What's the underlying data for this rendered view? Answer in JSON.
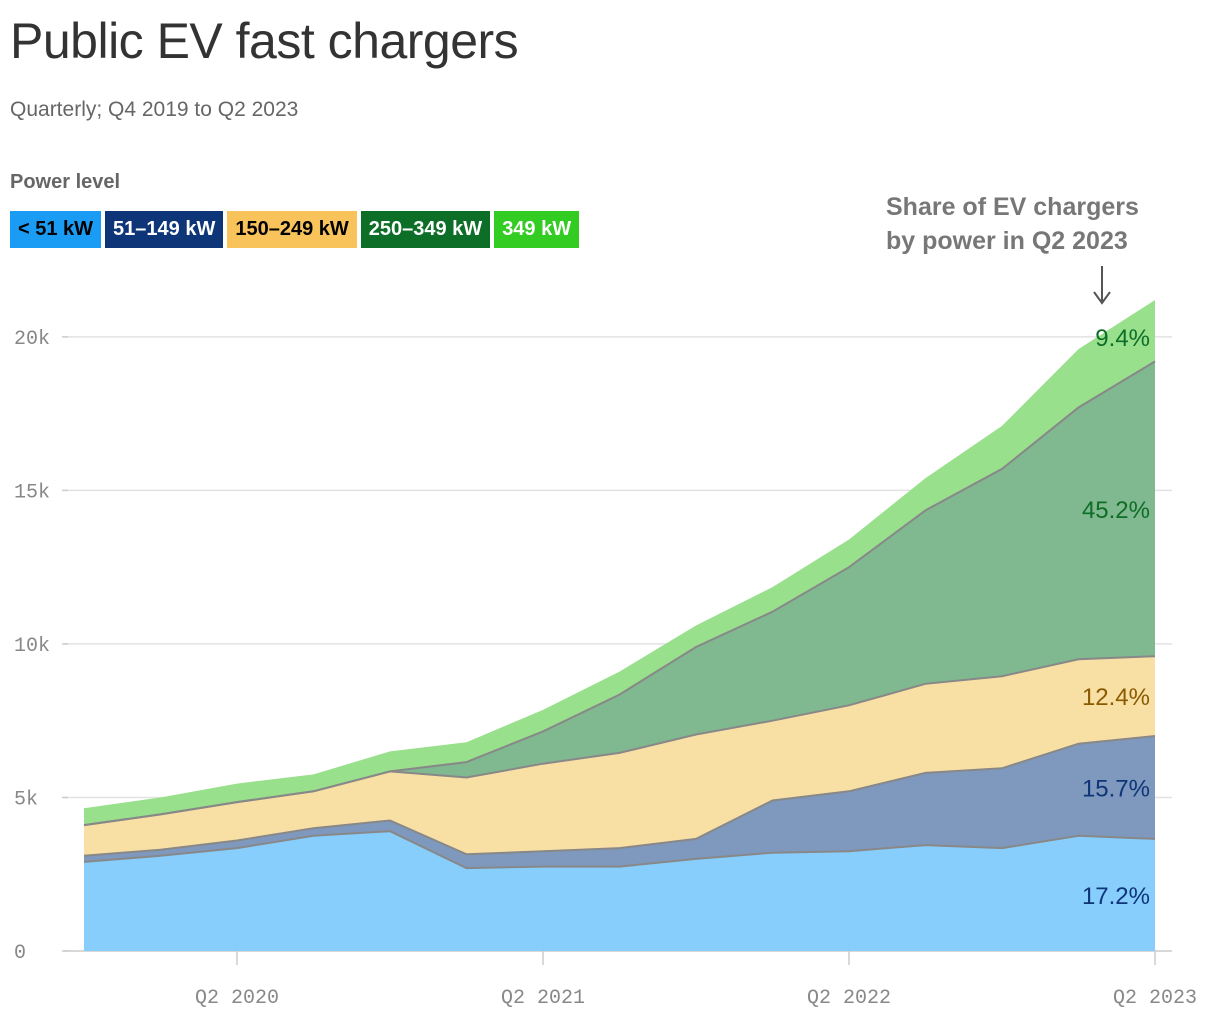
{
  "header": {
    "title": "Public EV fast chargers",
    "subtitle": "Quarterly; Q4 2019 to Q2 2023"
  },
  "legend": {
    "title": "Power level",
    "items": [
      {
        "label": "< 51 kW",
        "color": "#1a9cf5",
        "text_color": "#000000"
      },
      {
        "label": "51–149 kW",
        "color": "#0e3578",
        "text_color": "#ffffff"
      },
      {
        "label": "150–249 kW",
        "color": "#f7c35a",
        "text_color": "#000000"
      },
      {
        "label": "250–349 kW",
        "color": "#0d6e27",
        "text_color": "#ffffff"
      },
      {
        "label": "349 kW",
        "color": "#33cc22",
        "text_color": "#ffffff"
      }
    ]
  },
  "note": {
    "line1": "Share of EV chargers",
    "line2": "by power in Q2 2023",
    "arrow": "↓"
  },
  "chart_data": {
    "type": "area",
    "stacked": true,
    "x": [
      "Q4 2019",
      "Q1 2020",
      "Q2 2020",
      "Q3 2020",
      "Q4 2020",
      "Q1 2021",
      "Q2 2021",
      "Q3 2021",
      "Q4 2021",
      "Q1 2022",
      "Q2 2022",
      "Q3 2022",
      "Q4 2022",
      "Q1 2023",
      "Q2 2023"
    ],
    "x_tick_labels": [
      "Q2 2020",
      "Q2 2021",
      "Q2 2022",
      "Q2 2023"
    ],
    "y_ticks": [
      0,
      5000,
      10000,
      15000,
      20000
    ],
    "y_tick_labels": [
      "0",
      "5k",
      "10k",
      "15k",
      "20k"
    ],
    "ylim": [
      0,
      21200
    ],
    "grid": true,
    "series": [
      {
        "name": "< 51 kW",
        "color": "#87cefd",
        "values": [
          2900,
          3100,
          3350,
          3750,
          3900,
          2700,
          2750,
          2750,
          3000,
          3200,
          3250,
          3450,
          3350,
          3750,
          3650
        ]
      },
      {
        "name": "51–149 kW",
        "color": "#7f98bd",
        "values": [
          200,
          200,
          250,
          250,
          350,
          450,
          500,
          600,
          650,
          1700,
          1950,
          2350,
          2600,
          3000,
          3350
        ]
      },
      {
        "name": "150–249 kW",
        "color": "#f8e0a5",
        "values": [
          1000,
          1150,
          1250,
          1200,
          1600,
          2500,
          2850,
          3100,
          3400,
          2600,
          2800,
          2900,
          3000,
          2750,
          2600
        ]
      },
      {
        "name": "250–349 kW",
        "color": "#80b88f",
        "values": [
          0,
          0,
          0,
          0,
          0,
          500,
          1050,
          1900,
          2850,
          3550,
          4500,
          5650,
          6750,
          8200,
          9600
        ]
      },
      {
        "name": "349 kW",
        "color": "#98e08c",
        "values": [
          550,
          550,
          600,
          550,
          650,
          650,
          700,
          750,
          700,
          800,
          900,
          1050,
          1400,
          1900,
          2000
        ]
      }
    ],
    "annotations": [
      {
        "text": "17.2%",
        "series": "< 51 kW",
        "color": "#0e3578"
      },
      {
        "text": "15.7%",
        "series": "51–149 kW",
        "color": "#0e3578"
      },
      {
        "text": "12.4%",
        "series": "150–249 kW",
        "color": "#8a5a00"
      },
      {
        "text": "45.2%",
        "series": "250–349 kW",
        "color": "#0d6e27"
      },
      {
        "text": "9.4%",
        "series": "349 kW",
        "color": "#0d6e27"
      }
    ]
  }
}
